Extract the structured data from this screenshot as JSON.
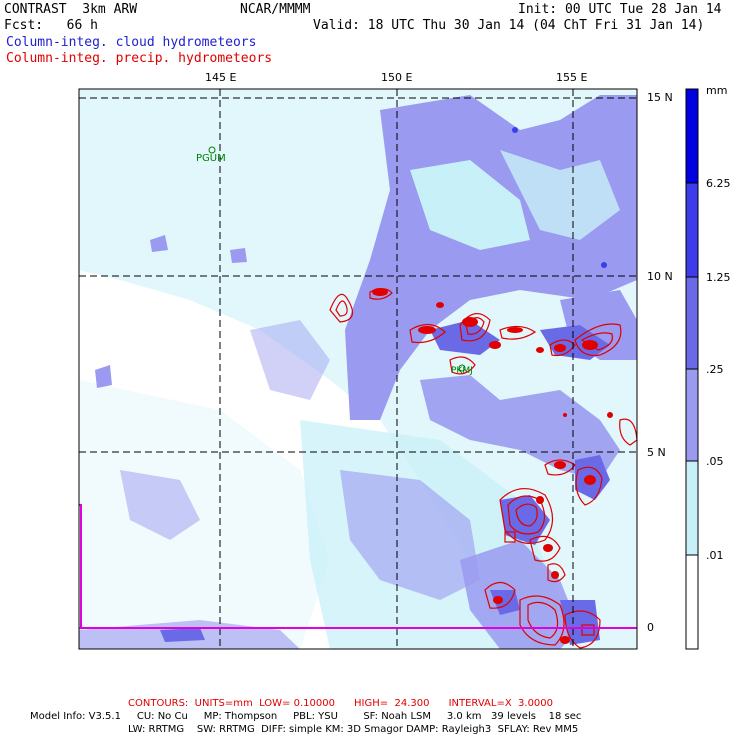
{
  "header": {
    "model": "CONTRAST  3km ARW",
    "source": "NCAR/MMMM",
    "init": "Init: 00 UTC Tue 28 Jan 14",
    "forecast": "Fcst:   66 h",
    "valid": "Valid: 18 UTC Thu 30 Jan 14 (04 ChT Fri 31 Jan 14)",
    "field1": "Column-integ. cloud hydrometeors",
    "field2": "Column-integ. precip. hydrometeors"
  },
  "map": {
    "lon_labels": [
      "145 E",
      "150 E",
      "155 E"
    ],
    "lat_labels": [
      "15 N",
      "10 N",
      "5 N",
      "0"
    ],
    "station_label": "PGUM",
    "station2_label": "PKMJ"
  },
  "legend": {
    "unit": "mm",
    "levels": [
      "6.25",
      "1.25",
      ".25",
      ".05",
      ".01"
    ],
    "colors": [
      "#0000e0",
      "#3c3cec",
      "#6a6ae6",
      "#9a9af0",
      "#c8f0f8",
      "#ffffff"
    ]
  },
  "footer": {
    "contours": "CONTOURS:  UNITS=mm  LOW= 0.10000      HIGH=  24.300      INTERVAL=X  3.0000",
    "model_info_1": "Model Info: V3.5.1     CU: No Cu     MP: Thompson     PBL: YSU        SF: Noah LSM     3.0 km   39 levels    18 sec",
    "model_info_2": "LW: RRTMG    SW: RRTMG  DIFF: simple KM: 3D Smagor DAMP: Rayleigh3  SFLAY: Rev MM5"
  }
}
